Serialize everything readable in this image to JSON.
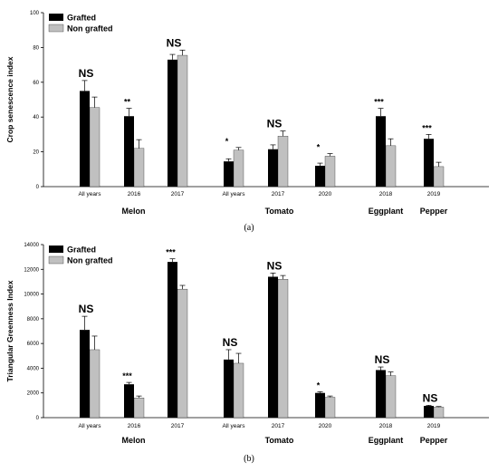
{
  "colors": {
    "grafted": "#000000",
    "non_grafted": "#c0c0c0",
    "axis": "#000000"
  },
  "chart_data": [
    {
      "type": "bar",
      "panel_label": "(a)",
      "ylabel": "Crop senescence index",
      "ylim": [
        0,
        100
      ],
      "yticks": [
        "0",
        "20",
        "40",
        "60",
        "80",
        "100"
      ],
      "legend": {
        "placement": "top-left",
        "entries": [
          "Grafted",
          "Non grafted"
        ]
      },
      "series_names": [
        "Grafted",
        "Non grafted"
      ],
      "groups": [
        {
          "label": "All years",
          "grafted": 55,
          "grafted_err": 6,
          "non_grafted": 45.5,
          "non_grafted_err": 6,
          "sig": "NS"
        },
        {
          "label": "2016",
          "grafted": 40.5,
          "grafted_err": 4.5,
          "non_grafted": 22,
          "non_grafted_err": 5,
          "sig": "**"
        },
        {
          "label": "2017",
          "grafted": 73,
          "grafted_err": 3,
          "non_grafted": 75.5,
          "non_grafted_err": 3,
          "sig": "NS"
        },
        {
          "label": "All years",
          "grafted": 14.5,
          "grafted_err": 1.5,
          "non_grafted": 21,
          "non_grafted_err": 1.5,
          "sig": "*"
        },
        {
          "label": "2017",
          "grafted": 21.5,
          "grafted_err": 2.5,
          "non_grafted": 29,
          "non_grafted_err": 3,
          "sig": "NS"
        },
        {
          "label": "2020",
          "grafted": 12,
          "grafted_err": 1.5,
          "non_grafted": 17.5,
          "non_grafted_err": 1.5,
          "sig": "*"
        },
        {
          "label": "2018",
          "grafted": 40.5,
          "grafted_err": 4.5,
          "non_grafted": 23.5,
          "non_grafted_err": 4,
          "sig": "***"
        },
        {
          "label": "2019",
          "grafted": 27.5,
          "grafted_err": 2.5,
          "non_grafted": 11.5,
          "non_grafted_err": 2.5,
          "sig": "***"
        }
      ],
      "crops": [
        {
          "name": "Melon",
          "groups": [
            0,
            2
          ]
        },
        {
          "name": "Tomato",
          "groups": [
            3,
            5
          ]
        },
        {
          "name": "Eggplant",
          "groups": [
            6,
            6
          ]
        },
        {
          "name": "Pepper",
          "groups": [
            7,
            7
          ]
        }
      ]
    },
    {
      "type": "bar",
      "panel_label": "(b)",
      "ylabel": "Triangular Greenness Index",
      "ylim": [
        0,
        14000
      ],
      "yticks": [
        "0",
        "2000",
        "4000",
        "6000",
        "8000",
        "10000",
        "12000",
        "14000"
      ],
      "legend": {
        "placement": "top-left",
        "entries": [
          "Grafted",
          "Non grafted"
        ]
      },
      "series_names": [
        "Grafted",
        "Non grafted"
      ],
      "groups": [
        {
          "label": "All years",
          "grafted": 7100,
          "grafted_err": 1100,
          "non_grafted": 5500,
          "non_grafted_err": 1100,
          "sig": "NS"
        },
        {
          "label": "2016",
          "grafted": 2700,
          "grafted_err": 150,
          "non_grafted": 1600,
          "non_grafted_err": 150,
          "sig": "***"
        },
        {
          "label": "2017",
          "grafted": 12600,
          "grafted_err": 250,
          "non_grafted": 10400,
          "non_grafted_err": 300,
          "sig": "***"
        },
        {
          "label": "All years",
          "grafted": 4700,
          "grafted_err": 800,
          "non_grafted": 4400,
          "non_grafted_err": 800,
          "sig": "NS"
        },
        {
          "label": "2017",
          "grafted": 11400,
          "grafted_err": 300,
          "non_grafted": 11200,
          "non_grafted_err": 300,
          "sig": "NS"
        },
        {
          "label": "2020",
          "grafted": 2000,
          "grafted_err": 100,
          "non_grafted": 1650,
          "non_grafted_err": 100,
          "sig": "*"
        },
        {
          "label": "2018",
          "grafted": 3850,
          "grafted_err": 250,
          "non_grafted": 3400,
          "non_grafted_err": 300,
          "sig": "NS"
        },
        {
          "label": "2019",
          "grafted": 950,
          "grafted_err": 50,
          "non_grafted": 850,
          "non_grafted_err": 50,
          "sig": "NS"
        }
      ],
      "crops": [
        {
          "name": "Melon",
          "groups": [
            0,
            2
          ]
        },
        {
          "name": "Tomato",
          "groups": [
            3,
            5
          ]
        },
        {
          "name": "Eggplant",
          "groups": [
            6,
            6
          ]
        },
        {
          "name": "Pepper",
          "groups": [
            7,
            7
          ]
        }
      ]
    }
  ]
}
